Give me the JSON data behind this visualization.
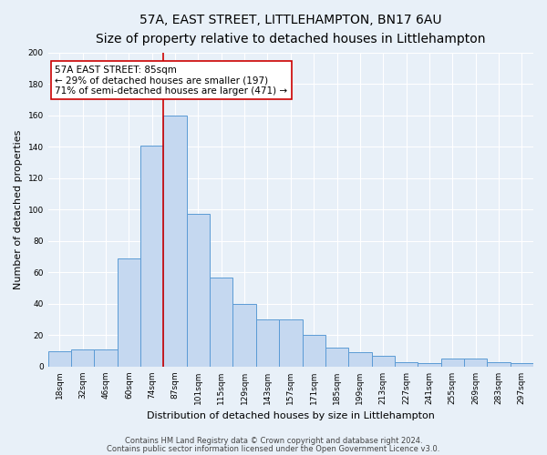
{
  "title": "57A, EAST STREET, LITTLEHAMPTON, BN17 6AU",
  "subtitle": "Size of property relative to detached houses in Littlehampton",
  "xlabel": "Distribution of detached houses by size in Littlehampton",
  "ylabel": "Number of detached properties",
  "bin_labels": [
    "18sqm",
    "32sqm",
    "46sqm",
    "60sqm",
    "74sqm",
    "87sqm",
    "101sqm",
    "115sqm",
    "129sqm",
    "143sqm",
    "157sqm",
    "171sqm",
    "185sqm",
    "199sqm",
    "213sqm",
    "227sqm",
    "241sqm",
    "255sqm",
    "269sqm",
    "283sqm",
    "297sqm"
  ],
  "bar_heights": [
    10,
    11,
    11,
    69,
    141,
    160,
    97,
    57,
    40,
    30,
    30,
    20,
    12,
    9,
    7,
    3,
    2,
    5,
    5,
    3,
    2
  ],
  "bar_color": "#c5d8f0",
  "bar_edge_color": "#5b9bd5",
  "marker_label": "57A EAST STREET: 85sqm",
  "annotation_line1": "← 29% of detached houses are smaller (197)",
  "annotation_line2": "71% of semi-detached houses are larger (471) →",
  "vline_color": "#cc0000",
  "vline_x_index": 5.0,
  "ylim": [
    0,
    200
  ],
  "yticks": [
    0,
    20,
    40,
    60,
    80,
    100,
    120,
    140,
    160,
    180,
    200
  ],
  "footer1": "Contains HM Land Registry data © Crown copyright and database right 2024.",
  "footer2": "Contains public sector information licensed under the Open Government Licence v3.0.",
  "bg_color": "#e8f0f8",
  "plot_bg_color": "#e8f0f8",
  "title_fontsize": 10,
  "subtitle_fontsize": 8.5,
  "axis_label_fontsize": 8,
  "tick_fontsize": 6.5,
  "annotation_fontsize": 7.5,
  "footer_fontsize": 6
}
